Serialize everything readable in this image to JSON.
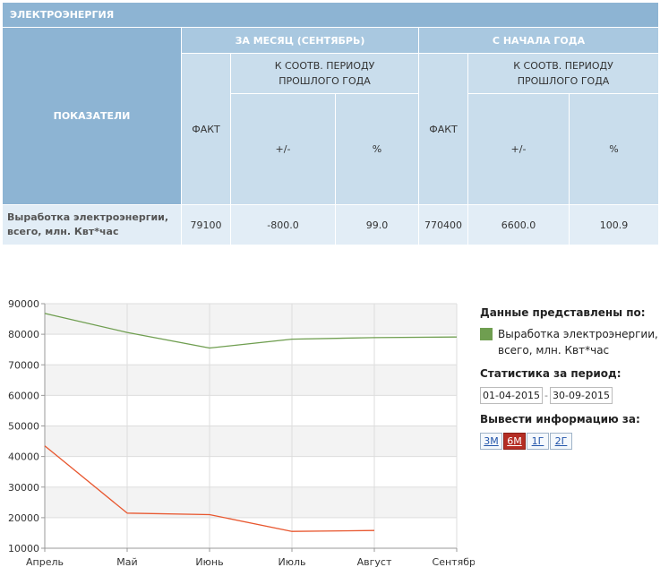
{
  "table": {
    "title": "ЭЛЕКТРОЭНЕРГИЯ",
    "indicators_header": "ПОКАЗАТЕЛИ",
    "month_group": "ЗА МЕСЯЦ (СЕНТЯБРЬ)",
    "ytd_group": "С НАЧАЛА ГОДА",
    "fact_label": "ФАКТ",
    "compare_line1": "К СООТВ. ПЕРИОДУ",
    "compare_line2": "ПРОШЛОГО ГОДА",
    "diff_label": "+/-",
    "percent_label": "%",
    "row": {
      "name_line1": "Выработка электроэнергии,",
      "name_line2": "всего, млн. Квт*час",
      "month_fact": "79100",
      "month_diff": "-800.0",
      "month_percent": "99.0",
      "ytd_fact": "770400",
      "ytd_diff": "6600.0",
      "ytd_percent": "100.9"
    }
  },
  "chart_data": {
    "type": "line",
    "categories": [
      "Апрель",
      "Май",
      "Июнь",
      "Июль",
      "Август",
      "Сентябрь"
    ],
    "series": [
      {
        "name": "Выработка электроэнергии, всего, млн. Квт*час",
        "color": "#6f9e50",
        "values": [
          86800,
          80600,
          75500,
          78400,
          78900,
          79100
        ]
      },
      {
        "color": "#e8572f",
        "values": [
          43500,
          21500,
          21000,
          15500,
          15800,
          null
        ]
      }
    ],
    "ylim": [
      10000,
      90000
    ],
    "y_ticks": [
      "10000",
      "20000",
      "30000",
      "40000",
      "50000",
      "60000",
      "70000",
      "80000",
      "90000"
    ],
    "grid": true
  },
  "legend_panel": {
    "heading": "Данные представлены по:",
    "period_heading": "Статистика за период:",
    "date_from": "01-04-2015",
    "date_separator": "-",
    "date_to": "30-09-2015",
    "output_heading": "Вывести информацию за:",
    "buttons": [
      "3М",
      "6М",
      "1Г",
      "2Г"
    ],
    "active_button": "6М"
  }
}
